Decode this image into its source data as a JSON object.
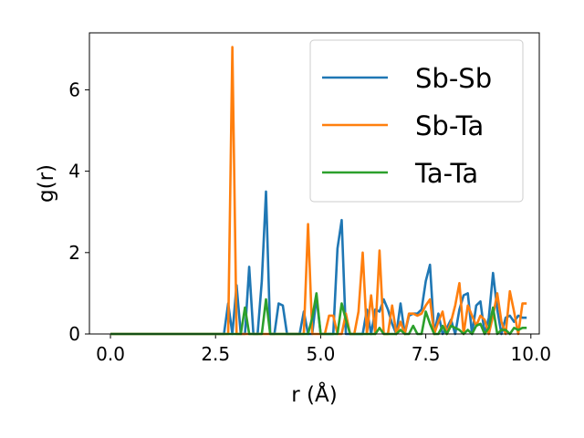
{
  "chart_data": {
    "type": "line",
    "title": "",
    "xlabel": "r (Å)",
    "ylabel": "g(r)",
    "xlim": [
      -0.5,
      10.2
    ],
    "ylim": [
      0,
      7.4
    ],
    "xticks": [
      0.0,
      2.5,
      5.0,
      7.5,
      10.0
    ],
    "xtick_labels": [
      "0.0",
      "2.5",
      "5.0",
      "7.5",
      "10.0"
    ],
    "yticks": [
      0,
      2,
      4,
      6
    ],
    "ytick_labels": [
      "0",
      "2",
      "4",
      "6"
    ],
    "grid": false,
    "legend_position": "top-right",
    "series": [
      {
        "name": "Sb-Sb",
        "color": "#1f77b4",
        "points": [
          [
            0.0,
            0
          ],
          [
            2.6,
            0
          ],
          [
            2.7,
            0
          ],
          [
            2.8,
            0.75
          ],
          [
            2.9,
            0
          ],
          [
            3.0,
            1.2
          ],
          [
            3.1,
            0
          ],
          [
            3.2,
            0
          ],
          [
            3.3,
            1.65
          ],
          [
            3.4,
            0
          ],
          [
            3.5,
            0
          ],
          [
            3.6,
            1.3
          ],
          [
            3.7,
            3.5
          ],
          [
            3.8,
            0
          ],
          [
            3.9,
            0
          ],
          [
            4.0,
            0.75
          ],
          [
            4.1,
            0.7
          ],
          [
            4.2,
            0
          ],
          [
            4.3,
            0
          ],
          [
            4.4,
            0
          ],
          [
            4.5,
            0
          ],
          [
            4.6,
            0.55
          ],
          [
            4.7,
            0
          ],
          [
            4.8,
            0
          ],
          [
            4.9,
            0.9
          ],
          [
            5.0,
            0
          ],
          [
            5.1,
            0
          ],
          [
            5.2,
            0
          ],
          [
            5.3,
            0
          ],
          [
            5.4,
            2.1
          ],
          [
            5.5,
            2.8
          ],
          [
            5.6,
            0
          ],
          [
            5.7,
            0
          ],
          [
            5.8,
            0
          ],
          [
            5.9,
            0
          ],
          [
            6.0,
            0
          ],
          [
            6.1,
            0.6
          ],
          [
            6.2,
            0
          ],
          [
            6.3,
            0.6
          ],
          [
            6.4,
            0.55
          ],
          [
            6.5,
            0.85
          ],
          [
            6.6,
            0.6
          ],
          [
            6.7,
            0.25
          ],
          [
            6.8,
            0
          ],
          [
            6.9,
            0.75
          ],
          [
            7.0,
            0
          ],
          [
            7.1,
            0.45
          ],
          [
            7.2,
            0.5
          ],
          [
            7.3,
            0.5
          ],
          [
            7.4,
            0.6
          ],
          [
            7.5,
            1.3
          ],
          [
            7.6,
            1.7
          ],
          [
            7.7,
            0
          ],
          [
            7.8,
            0.5
          ],
          [
            7.9,
            0
          ],
          [
            8.0,
            0.15
          ],
          [
            8.1,
            0.35
          ],
          [
            8.2,
            0
          ],
          [
            8.3,
            0.6
          ],
          [
            8.4,
            0.95
          ],
          [
            8.5,
            1.0
          ],
          [
            8.6,
            0
          ],
          [
            8.7,
            0.7
          ],
          [
            8.8,
            0.8
          ],
          [
            8.9,
            0
          ],
          [
            9.0,
            0.4
          ],
          [
            9.1,
            1.5
          ],
          [
            9.2,
            0.6
          ],
          [
            9.3,
            0
          ],
          [
            9.4,
            0.4
          ],
          [
            9.5,
            0.45
          ],
          [
            9.6,
            0.3
          ],
          [
            9.7,
            0.45
          ],
          [
            9.8,
            0.4
          ],
          [
            9.9,
            0.4
          ]
        ]
      },
      {
        "name": "Sb-Ta",
        "color": "#ff7f0e",
        "points": [
          [
            0.0,
            0
          ],
          [
            2.7,
            0
          ],
          [
            2.8,
            0
          ],
          [
            2.9,
            7.05
          ],
          [
            3.0,
            0
          ],
          [
            3.1,
            0
          ],
          [
            3.2,
            0
          ],
          [
            3.3,
            0
          ],
          [
            3.4,
            0
          ],
          [
            3.5,
            0
          ],
          [
            3.6,
            0
          ],
          [
            3.7,
            0
          ],
          [
            3.8,
            0
          ],
          [
            3.9,
            0
          ],
          [
            4.0,
            0
          ],
          [
            4.1,
            0
          ],
          [
            4.2,
            0
          ],
          [
            4.3,
            0
          ],
          [
            4.4,
            0
          ],
          [
            4.5,
            0
          ],
          [
            4.6,
            0
          ],
          [
            4.7,
            2.7
          ],
          [
            4.8,
            0
          ],
          [
            4.9,
            0
          ],
          [
            5.0,
            0
          ],
          [
            5.1,
            0
          ],
          [
            5.2,
            0.45
          ],
          [
            5.3,
            0.45
          ],
          [
            5.4,
            0
          ],
          [
            5.5,
            0
          ],
          [
            5.6,
            0.5
          ],
          [
            5.7,
            0
          ],
          [
            5.8,
            0
          ],
          [
            5.9,
            0.55
          ],
          [
            6.0,
            2.0
          ],
          [
            6.1,
            0
          ],
          [
            6.2,
            0.95
          ],
          [
            6.3,
            0
          ],
          [
            6.4,
            2.05
          ],
          [
            6.5,
            0
          ],
          [
            6.6,
            0
          ],
          [
            6.7,
            0.7
          ],
          [
            6.8,
            0
          ],
          [
            6.9,
            0.3
          ],
          [
            7.0,
            0
          ],
          [
            7.1,
            0.5
          ],
          [
            7.2,
            0.5
          ],
          [
            7.3,
            0.45
          ],
          [
            7.4,
            0.5
          ],
          [
            7.5,
            0.7
          ],
          [
            7.6,
            0.85
          ],
          [
            7.7,
            0
          ],
          [
            7.8,
            0.3
          ],
          [
            7.9,
            0.55
          ],
          [
            8.0,
            0
          ],
          [
            8.1,
            0.3
          ],
          [
            8.2,
            0.7
          ],
          [
            8.3,
            1.25
          ],
          [
            8.4,
            0
          ],
          [
            8.5,
            0.7
          ],
          [
            8.6,
            0.45
          ],
          [
            8.7,
            0.2
          ],
          [
            8.8,
            0.45
          ],
          [
            8.9,
            0.35
          ],
          [
            9.0,
            0
          ],
          [
            9.1,
            0.45
          ],
          [
            9.2,
            1.0
          ],
          [
            9.3,
            0.3
          ],
          [
            9.4,
            0
          ],
          [
            9.5,
            1.05
          ],
          [
            9.6,
            0.55
          ],
          [
            9.7,
            0
          ],
          [
            9.8,
            0.75
          ],
          [
            9.9,
            0.75
          ]
        ]
      },
      {
        "name": "Ta-Ta",
        "color": "#2ca02c",
        "points": [
          [
            0.0,
            0
          ],
          [
            3.0,
            0
          ],
          [
            3.1,
            0
          ],
          [
            3.2,
            0.65
          ],
          [
            3.3,
            0
          ],
          [
            3.4,
            0
          ],
          [
            3.5,
            0
          ],
          [
            3.6,
            0
          ],
          [
            3.7,
            0.85
          ],
          [
            3.8,
            0
          ],
          [
            3.9,
            0
          ],
          [
            4.0,
            0
          ],
          [
            4.1,
            0
          ],
          [
            4.2,
            0
          ],
          [
            4.3,
            0
          ],
          [
            4.4,
            0
          ],
          [
            4.5,
            0
          ],
          [
            4.6,
            0
          ],
          [
            4.7,
            0
          ],
          [
            4.8,
            0.4
          ],
          [
            4.9,
            1.0
          ],
          [
            5.0,
            0
          ],
          [
            5.1,
            0
          ],
          [
            5.2,
            0
          ],
          [
            5.3,
            0
          ],
          [
            5.4,
            0
          ],
          [
            5.5,
            0.75
          ],
          [
            5.6,
            0.35
          ],
          [
            5.7,
            0
          ],
          [
            5.8,
            0
          ],
          [
            5.9,
            0
          ],
          [
            6.0,
            0
          ],
          [
            6.1,
            0
          ],
          [
            6.2,
            0
          ],
          [
            6.3,
            0
          ],
          [
            6.4,
            0.15
          ],
          [
            6.5,
            0
          ],
          [
            6.6,
            0
          ],
          [
            6.7,
            0
          ],
          [
            6.8,
            0
          ],
          [
            6.9,
            0.1
          ],
          [
            7.0,
            0
          ],
          [
            7.1,
            0
          ],
          [
            7.2,
            0.2
          ],
          [
            7.3,
            0
          ],
          [
            7.4,
            0
          ],
          [
            7.5,
            0.55
          ],
          [
            7.6,
            0.25
          ],
          [
            7.7,
            0
          ],
          [
            7.8,
            0
          ],
          [
            7.9,
            0.2
          ],
          [
            8.0,
            0
          ],
          [
            8.1,
            0.2
          ],
          [
            8.2,
            0.15
          ],
          [
            8.3,
            0.1
          ],
          [
            8.4,
            0
          ],
          [
            8.5,
            0.1
          ],
          [
            8.6,
            0
          ],
          [
            8.7,
            0.2
          ],
          [
            8.8,
            0.25
          ],
          [
            8.9,
            0
          ],
          [
            9.0,
            0.15
          ],
          [
            9.1,
            0.65
          ],
          [
            9.2,
            0
          ],
          [
            9.3,
            0.1
          ],
          [
            9.4,
            0.1
          ],
          [
            9.5,
            0
          ],
          [
            9.6,
            0.15
          ],
          [
            9.7,
            0.1
          ],
          [
            9.8,
            0.15
          ],
          [
            9.9,
            0.15
          ]
        ]
      }
    ]
  }
}
